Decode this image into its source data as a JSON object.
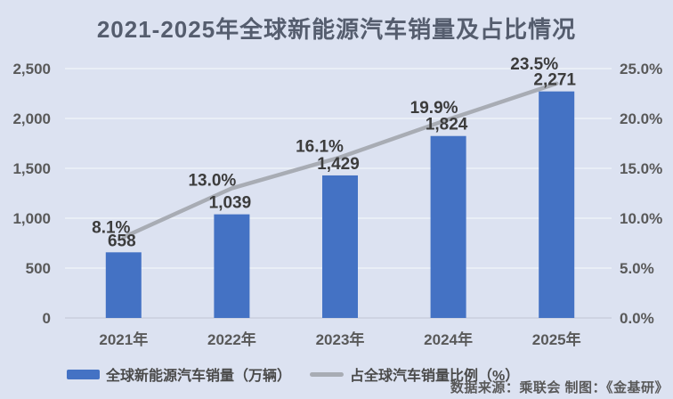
{
  "chart": {
    "title": "2021-2025年全球新能源汽车销量及占比情况",
    "source_note": "数据来源：乘联会  制图：《金基研》"
  },
  "legend": {
    "bar_label": "全球新能源汽车销量（万辆）",
    "line_label": "占全球汽车销量比例（%）"
  },
  "colors": {
    "background": "#dce2f1",
    "bar": "#4472c4",
    "line": "#a8acb4",
    "gridline": "#edf1f8",
    "axis_text": "#595959",
    "data_label_text": "#3c3c3c",
    "title_text": "#555d6e"
  },
  "chart_data": {
    "type": "bar",
    "subtype": "combo-bar-line",
    "title": "2021-2025年全球新能源汽车销量及占比情况",
    "categories": [
      "2021年",
      "2022年",
      "2023年",
      "2024年",
      "2025年"
    ],
    "series": [
      {
        "name": "全球新能源汽车销量（万辆）",
        "type": "bar",
        "axis": "left",
        "values": [
          658,
          1039,
          1429,
          1824,
          2271
        ],
        "labels": [
          "658",
          "1,039",
          "1,429",
          "1,824",
          "2,271"
        ],
        "color": "#4472c4"
      },
      {
        "name": "占全球汽车销量比例（%）",
        "type": "line",
        "axis": "right",
        "values": [
          8.1,
          13.0,
          16.1,
          19.9,
          23.5
        ],
        "labels": [
          "8.1%",
          "13.0%",
          "16.1%",
          "19.9%",
          "23.5%"
        ],
        "color": "#a8acb4"
      }
    ],
    "y_left": {
      "min": 0,
      "max": 2500,
      "ticks": [
        "0",
        "500",
        "1,000",
        "1,500",
        "2,000",
        "2,500"
      ]
    },
    "y_right": {
      "min": 0,
      "max": 25,
      "ticks": [
        "0.0%",
        "5.0%",
        "10.0%",
        "15.0%",
        "20.0%",
        "25.0%"
      ]
    },
    "grid": "horizontal",
    "legend_position": "bottom",
    "xlabel": "",
    "ylabel_left": "",
    "ylabel_right": ""
  }
}
